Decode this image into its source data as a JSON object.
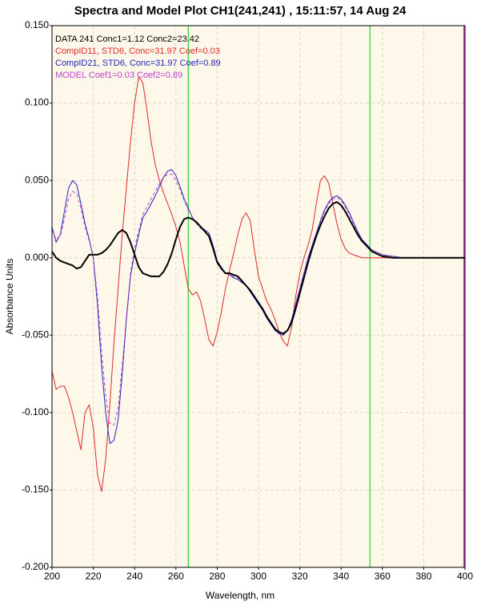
{
  "chart_data": {
    "type": "line",
    "title": "Spectra and Model Plot CH1(241,241) , 15:11:57, 14 Aug 24",
    "xlabel": "Wavelength, nm",
    "ylabel": "Absorbance Units",
    "x": [
      200,
      202,
      204,
      206,
      208,
      210,
      212,
      214,
      216,
      218,
      220,
      222,
      224,
      226,
      228,
      230,
      232,
      234,
      236,
      238,
      240,
      242,
      244,
      246,
      248,
      250,
      252,
      254,
      256,
      258,
      260,
      262,
      264,
      266,
      268,
      270,
      272,
      274,
      276,
      278,
      280,
      282,
      284,
      286,
      288,
      290,
      292,
      294,
      296,
      298,
      300,
      302,
      304,
      306,
      308,
      310,
      312,
      314,
      316,
      318,
      320,
      322,
      324,
      326,
      328,
      330,
      332,
      334,
      336,
      338,
      340,
      342,
      344,
      346,
      348,
      350,
      355,
      360,
      365,
      370,
      375,
      380,
      385,
      390,
      395,
      400
    ],
    "series": [
      {
        "name": "DATA 241 Conc1=1.12 Conc2=23.42",
        "color": "#000000",
        "width": 2,
        "dashed": false,
        "values": [
          0.004,
          0.0,
          -0.002,
          -0.003,
          -0.004,
          -0.005,
          -0.007,
          -0.006,
          -0.002,
          0.002,
          0.002,
          0.002,
          0.003,
          0.005,
          0.008,
          0.012,
          0.016,
          0.018,
          0.016,
          0.01,
          0.002,
          -0.006,
          -0.01,
          -0.011,
          -0.012,
          -0.012,
          -0.012,
          -0.009,
          -0.004,
          0.003,
          0.012,
          0.02,
          0.025,
          0.026,
          0.025,
          0.023,
          0.02,
          0.017,
          0.014,
          0.006,
          -0.003,
          -0.007,
          -0.01,
          -0.01,
          -0.011,
          -0.012,
          -0.015,
          -0.018,
          -0.021,
          -0.025,
          -0.029,
          -0.033,
          -0.038,
          -0.042,
          -0.046,
          -0.048,
          -0.049,
          -0.047,
          -0.042,
          -0.033,
          -0.023,
          -0.013,
          -0.003,
          0.006,
          0.014,
          0.021,
          0.027,
          0.032,
          0.035,
          0.036,
          0.034,
          0.03,
          0.025,
          0.02,
          0.015,
          0.011,
          0.004,
          0.001,
          0,
          0,
          0,
          0,
          0,
          0,
          0,
          0
        ]
      },
      {
        "name": "CompID11, STD6, Conc=31.97 Coef=0.03",
        "color": "#e02828",
        "width": 1,
        "dashed": false,
        "values": [
          -0.073,
          -0.085,
          -0.083,
          -0.083,
          -0.09,
          -0.1,
          -0.112,
          -0.124,
          -0.1,
          -0.095,
          -0.11,
          -0.14,
          -0.151,
          -0.13,
          -0.095,
          -0.055,
          -0.02,
          0.015,
          0.045,
          0.075,
          0.1,
          0.117,
          0.113,
          0.095,
          0.075,
          0.06,
          0.05,
          0.042,
          0.035,
          0.028,
          0.02,
          0.01,
          -0.005,
          -0.02,
          -0.024,
          -0.022,
          -0.028,
          -0.04,
          -0.053,
          -0.057,
          -0.048,
          -0.035,
          -0.02,
          -0.008,
          0.003,
          0.015,
          0.025,
          0.029,
          0.024,
          0.005,
          -0.012,
          -0.02,
          -0.028,
          -0.033,
          -0.04,
          -0.048,
          -0.054,
          -0.057,
          -0.045,
          -0.025,
          -0.01,
          0.0,
          0.008,
          0.018,
          0.035,
          0.05,
          0.053,
          0.048,
          0.035,
          0.022,
          0.012,
          0.006,
          0.003,
          0.002,
          0.001,
          0,
          0,
          0,
          0,
          0,
          0,
          0,
          0,
          0,
          0,
          0
        ]
      },
      {
        "name": "CompID21, STD6, Conc=31.97 Coef=0.89",
        "color": "#2424b8",
        "width": 1,
        "dashed": false,
        "values": [
          0.02,
          0.01,
          0.015,
          0.03,
          0.045,
          0.05,
          0.047,
          0.035,
          0.022,
          0.012,
          0.0,
          -0.03,
          -0.07,
          -0.1,
          -0.12,
          -0.118,
          -0.105,
          -0.075,
          -0.04,
          -0.012,
          0.003,
          0.015,
          0.026,
          0.03,
          0.035,
          0.04,
          0.046,
          0.052,
          0.056,
          0.057,
          0.053,
          0.046,
          0.038,
          0.032,
          0.026,
          0.022,
          0.02,
          0.018,
          0.016,
          0.008,
          -0.002,
          -0.006,
          -0.01,
          -0.011,
          -0.013,
          -0.014,
          -0.016,
          -0.018,
          -0.022,
          -0.026,
          -0.03,
          -0.034,
          -0.039,
          -0.043,
          -0.047,
          -0.049,
          -0.05,
          -0.047,
          -0.04,
          -0.03,
          -0.02,
          -0.01,
          0.0,
          0.008,
          0.016,
          0.024,
          0.031,
          0.036,
          0.039,
          0.04,
          0.038,
          0.034,
          0.029,
          0.023,
          0.017,
          0.012,
          0.005,
          0.002,
          0.001,
          0,
          0,
          0,
          0,
          0,
          0,
          0
        ]
      },
      {
        "name": "MODEL Coef1=0.03 Coef2=0.89",
        "color": "#c040c8",
        "width": 1,
        "dashed": true,
        "values": [
          0.018,
          0.012,
          0.014,
          0.025,
          0.038,
          0.043,
          0.041,
          0.032,
          0.02,
          0.011,
          0.0,
          -0.025,
          -0.06,
          -0.09,
          -0.107,
          -0.108,
          -0.097,
          -0.07,
          -0.038,
          -0.01,
          0.006,
          0.018,
          0.028,
          0.033,
          0.038,
          0.043,
          0.048,
          0.052,
          0.054,
          0.054,
          0.05,
          0.044,
          0.037,
          0.031,
          0.026,
          0.022,
          0.019,
          0.017,
          0.015,
          0.007,
          -0.003,
          -0.006,
          -0.01,
          -0.011,
          -0.012,
          -0.013,
          -0.015,
          -0.018,
          -0.021,
          -0.025,
          -0.029,
          -0.033,
          -0.038,
          -0.042,
          -0.046,
          -0.048,
          -0.049,
          -0.047,
          -0.041,
          -0.031,
          -0.021,
          -0.011,
          -0.001,
          0.007,
          0.015,
          0.023,
          0.03,
          0.035,
          0.038,
          0.039,
          0.037,
          0.033,
          0.028,
          0.022,
          0.016,
          0.011,
          0.005,
          0.002,
          0.001,
          0,
          0,
          0,
          0,
          0,
          0,
          0
        ]
      }
    ],
    "xlim": [
      200,
      400
    ],
    "xticks": [
      200,
      220,
      240,
      260,
      280,
      300,
      320,
      340,
      360,
      380,
      400
    ],
    "ylim": [
      -0.2,
      0.15
    ],
    "yticks": [
      {
        "value": 0.15,
        "label": "0.150"
      },
      {
        "value": 0.1,
        "label": "0.100"
      },
      {
        "value": 0.05,
        "label": "0.050"
      },
      {
        "value": 0,
        "label": "0.000"
      },
      {
        "value": -0.05,
        "label": "-0.050"
      },
      {
        "value": -0.1,
        "label": "-0.100"
      },
      {
        "value": -0.15,
        "label": "-0.150"
      },
      {
        "value": -0.2,
        "label": "-0.200"
      }
    ],
    "grid": true,
    "legend": "top-left",
    "background": "#fdf8ea",
    "vlines": [
      {
        "x": 266,
        "color": "#44dd44"
      },
      {
        "x": 354,
        "color": "#44dd44"
      },
      {
        "x": 399.5,
        "color": "#cc33cc"
      }
    ]
  }
}
